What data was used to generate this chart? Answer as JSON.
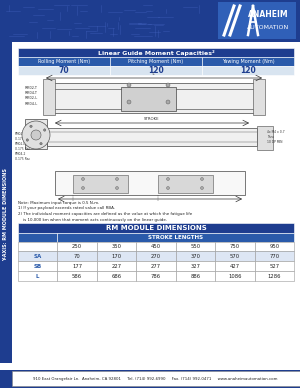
{
  "page_bg": "#ffffff",
  "header_bg": "#1e3d8f",
  "sidebar_color": "#1e3d8f",
  "moment_table_title": "Linear Guide Moment Capacities²",
  "moment_table_header_bg": "#1e3d8f",
  "moment_table_row_bg": "#2a5aaa",
  "moment_headers": [
    "Rolling Moment (Nm)",
    "Pitching Moment (Nm)",
    "Yawing Moment (Nm)"
  ],
  "moment_values": [
    "70",
    "120",
    "120"
  ],
  "dim_table_title": "RM MODULE DIMENSIONS",
  "dim_table_header_bg": "#1e3d8f",
  "dim_table_sub_bg": "#2a5aaa",
  "stroke_label": "STROKE LENGTHS",
  "stroke_cols": [
    "250",
    "350",
    "450",
    "550",
    "750",
    "950"
  ],
  "row_labels": [
    "SA",
    "SB",
    "L"
  ],
  "row_label_color": "#2a5aaa",
  "table_data": [
    [
      "70",
      "170",
      "270",
      "370",
      "570",
      "770"
    ],
    [
      "177",
      "227",
      "277",
      "327",
      "427",
      "527"
    ],
    [
      "586",
      "686",
      "786",
      "886",
      "1086",
      "1286"
    ]
  ],
  "footer_text": "910 East Orangefair Ln.  Anaheim, CA 92801     Tel. (714) 992-6990     Fax. (714) 992-0471     www.anaheimautomation.com",
  "sidebar_text": "Y-AXIS: RM MODULE DIMENSIONS",
  "note_text": "Note: Maximum input torque is 0.5 N-m.\n1) If your payload exceeds rated value call RBA.\n2) The individual moment capacities are defined as the value at which the fatigue life\n    is 10,000 km when that moment acts continuously on the linear guide.",
  "white": "#ffffff",
  "black": "#000000",
  "text_dark": "#222222",
  "light_row": "#dde6f4",
  "white_row": "#ffffff",
  "border_color": "#1e3d8f",
  "logo_slash_color": "#ffffff",
  "logo_bg": "#2a5aaa"
}
